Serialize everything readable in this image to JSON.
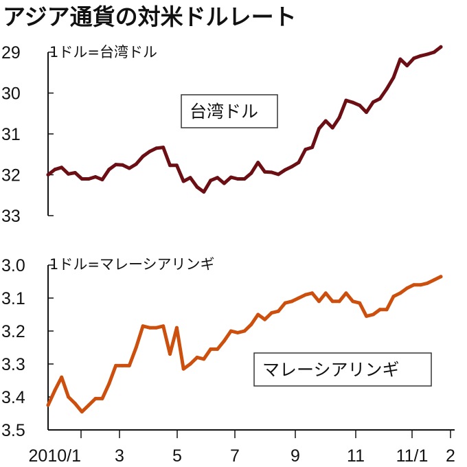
{
  "title": "アジア通貨の対米ドルレート",
  "chart_data": [
    {
      "type": "line",
      "unit_label": "1ドル=台湾ドル",
      "legend": "台湾ドル",
      "color": "#6b0f14",
      "y_inverted": true,
      "ylim": [
        33,
        29
      ],
      "yticks": [
        "29",
        "30",
        "31",
        "32",
        "33"
      ],
      "x_ticks": [
        "2010/1",
        "3",
        "5",
        "7",
        "9",
        "11",
        "11/1",
        "2"
      ],
      "series": [
        {
          "values": [
            32.0,
            31.87,
            31.82,
            31.98,
            31.95,
            32.1,
            32.1,
            32.05,
            32.12,
            31.87,
            31.75,
            31.76,
            31.84,
            31.74,
            31.55,
            31.43,
            31.35,
            31.33,
            31.77,
            31.77,
            32.16,
            32.07,
            32.3,
            32.42,
            32.14,
            32.07,
            32.21,
            32.06,
            32.1,
            32.1,
            31.96,
            31.7,
            31.93,
            31.94,
            31.99,
            31.88,
            31.8,
            31.7,
            31.38,
            31.33,
            30.87,
            30.68,
            30.85,
            30.6,
            30.18,
            30.23,
            30.3,
            30.47,
            30.22,
            30.14,
            29.9,
            29.62,
            29.17,
            29.33,
            29.15,
            29.09,
            29.05,
            29.0,
            28.87
          ]
        }
      ]
    },
    {
      "type": "line",
      "unit_label": "1ドル=マレーシアリンギ",
      "legend": "マレーシアリンギ",
      "color": "#cc4f0e",
      "y_inverted": true,
      "ylim": [
        3.5,
        3.0
      ],
      "yticks": [
        "3.0",
        "3.1",
        "3.2",
        "3.3",
        "3.4",
        "3.5"
      ],
      "x_ticks": [
        "2010/1",
        "3",
        "5",
        "7",
        "9",
        "11",
        "11/1",
        "2"
      ],
      "series": [
        {
          "values": [
            3.425,
            3.38,
            3.34,
            3.4,
            3.42,
            3.445,
            3.425,
            3.405,
            3.405,
            3.36,
            3.305,
            3.305,
            3.305,
            3.25,
            3.185,
            3.19,
            3.19,
            3.185,
            3.27,
            3.19,
            3.315,
            3.3,
            3.28,
            3.285,
            3.255,
            3.255,
            3.23,
            3.2,
            3.205,
            3.2,
            3.18,
            3.15,
            3.165,
            3.145,
            3.14,
            3.115,
            3.11,
            3.1,
            3.09,
            3.085,
            3.11,
            3.085,
            3.11,
            3.11,
            3.085,
            3.11,
            3.115,
            3.155,
            3.15,
            3.135,
            3.135,
            3.095,
            3.085,
            3.07,
            3.06,
            3.06,
            3.055,
            3.045,
            3.035
          ]
        }
      ]
    }
  ]
}
